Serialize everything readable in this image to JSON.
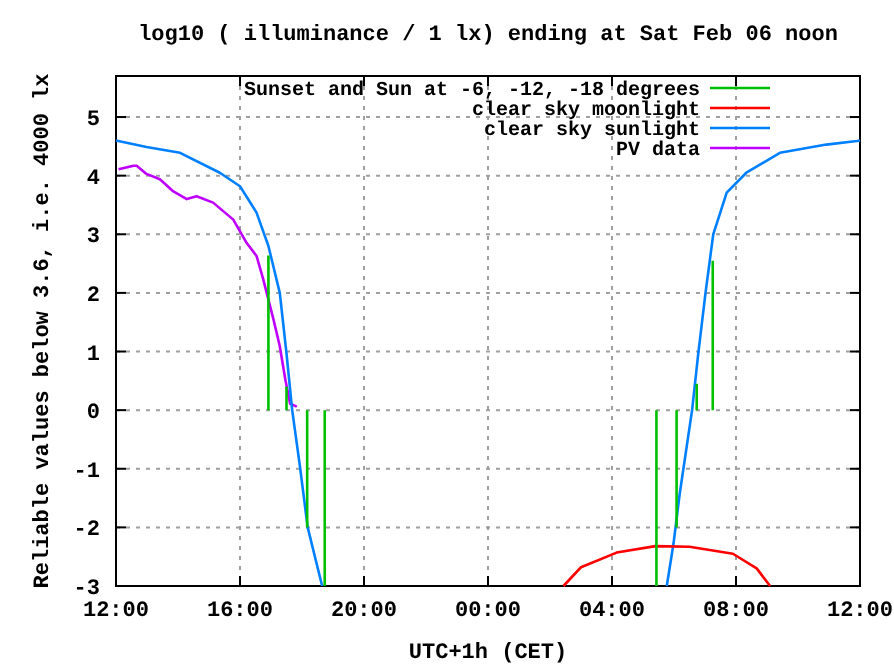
{
  "chart_data": {
    "type": "line",
    "title": "log10 ( illuminance / 1 lx) ending at Sat Feb 06 noon",
    "xlabel": "UTC+1h (CET)",
    "ylabel": "Reliable values below 3.6, i.e. 4000 lx",
    "xlim": [
      "--02-05T12:00",
      "--02-06T12:00"
    ],
    "xticks": [
      {
        "value": "--02-05T12:00",
        "label": "12:00"
      },
      {
        "value": "--02-05T16:00",
        "label": "16:00"
      },
      {
        "value": "--02-05T20:00",
        "label": "20:00"
      },
      {
        "value": "--02-06T00:00",
        "label": "00:00"
      },
      {
        "value": "--02-06T04:00",
        "label": "04:00"
      },
      {
        "value": "--02-06T08:00",
        "label": "08:00"
      },
      {
        "value": "--02-06T12:00",
        "label": "12:00"
      }
    ],
    "ylim": [
      -3,
      5.7
    ],
    "yticks": [
      -3,
      -2,
      -1,
      0,
      1,
      2,
      3,
      4,
      5
    ],
    "grid": true,
    "legend": "top right",
    "marker": "none",
    "line_style": "solid",
    "series": [
      {
        "name": "Sunset and Sun at -6, -12, -18 degrees",
        "color": "#00c000",
        "x": [
          "--02-05T16:55",
          "--02-05T16:55",
          null,
          "--02-05T17:30",
          "--02-05T17:30",
          null,
          "--02-05T18:10",
          "--02-05T18:10",
          null,
          "--02-05T18:44",
          "--02-05T18:44",
          null,
          "--02-06T05:26",
          "--02-06T05:26",
          null,
          "--02-06T06:05",
          "--02-06T06:05",
          null,
          "--02-06T06:44",
          "--02-06T06:44",
          null,
          "--02-06T07:15",
          "--02-06T07:15"
        ],
        "values": [
          0,
          2.64,
          null,
          0,
          0.4,
          null,
          0,
          -2,
          null,
          0,
          -3,
          null,
          0,
          -3,
          null,
          0,
          -2,
          null,
          0,
          0.45,
          null,
          0,
          2.55
        ]
      },
      {
        "name": "clear sky moonlight",
        "color": "#ff0000",
        "x": [
          "--02-06T02:26",
          "--02-06T03:00",
          "--02-06T04:09",
          "--02-06T05:24",
          "--02-06T06:30",
          "--02-06T07:54",
          "--02-06T08:40",
          "--02-06T09:06"
        ],
        "values": [
          -3,
          -2.68,
          -2.43,
          -2.32,
          -2.33,
          -2.45,
          -2.7,
          -3
        ]
      },
      {
        "name": "clear sky sunlight",
        "color": "#0080ff",
        "x": [
          "--02-05T12:00",
          "--02-05T12:59",
          "--02-05T14:04",
          "--02-05T15:21",
          "--02-05T16:00",
          "--02-05T16:32",
          "--02-05T16:55",
          "--02-05T17:17",
          "--02-05T17:30",
          "--02-05T17:41",
          "--02-05T17:56",
          "--02-05T18:11",
          "--02-05T18:39",
          null,
          "--02-06T05:46",
          "--02-06T05:59",
          "--02-06T06:11",
          "--02-06T06:35",
          "--02-06T06:47",
          "--02-06T07:01",
          "--02-06T07:16",
          "--02-06T07:42",
          "--02-06T08:20",
          "--02-06T09:25",
          "--02-06T10:55",
          "--02-06T11:54",
          "--02-06T12:00"
        ],
        "values": [
          4.6,
          4.49,
          4.39,
          4.05,
          3.82,
          3.37,
          2.8,
          2.0,
          0.97,
          0,
          -0.96,
          -2.0,
          -3,
          null,
          -3,
          -2.28,
          -1.43,
          0,
          0.97,
          2.0,
          3.0,
          3.71,
          4.05,
          4.39,
          4.53,
          4.59,
          4.6
        ]
      },
      {
        "name": "PV data",
        "color": "#c000ff",
        "x": [
          "--02-05T12:05",
          "--02-05T12:34",
          "--02-05T12:40",
          "--02-05T12:59",
          "--02-05T13:25",
          "--02-05T13:51",
          "--02-05T14:17",
          "--02-05T14:36",
          "--02-05T15:08",
          "--02-05T15:47",
          "--02-05T16:13",
          "--02-05T16:32",
          "--02-05T16:45",
          "--02-05T17:05",
          "--02-05T17:17",
          "--02-05T17:28",
          "--02-05T17:37",
          "--02-05T17:50"
        ],
        "values": [
          4.11,
          4.17,
          4.17,
          4.03,
          3.94,
          3.73,
          3.6,
          3.65,
          3.54,
          3.25,
          2.85,
          2.63,
          2.23,
          1.54,
          1.09,
          0.51,
          0.11,
          0.06
        ]
      }
    ]
  }
}
